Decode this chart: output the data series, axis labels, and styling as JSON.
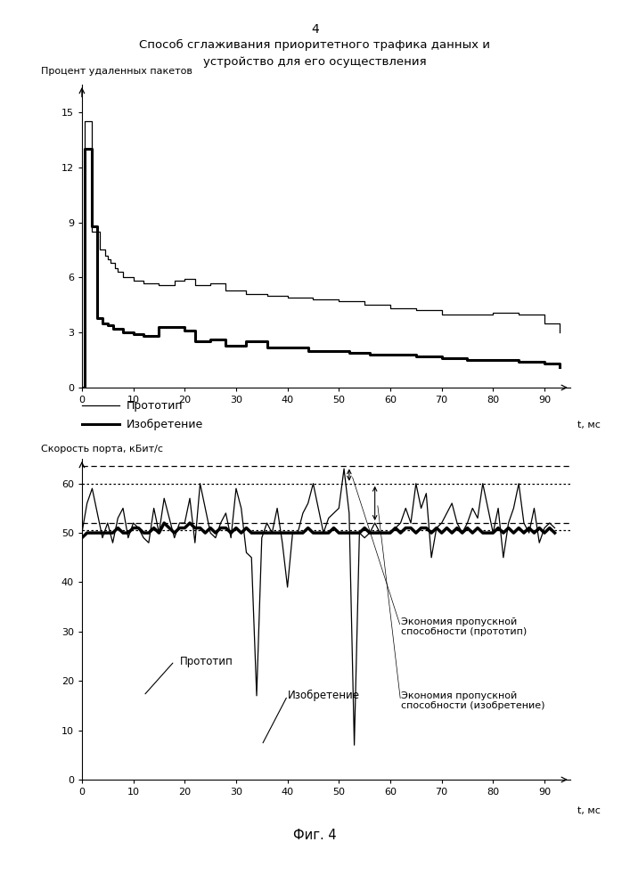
{
  "page_number": "4",
  "title_line1": "Способ сглаживания приоритетного трафика данных и",
  "title_line2": "устройство для его осуществления",
  "fig_label": "Фиг. 4",
  "chart1": {
    "ylabel": "Процент удаленных пакетов",
    "xlabel": "t, мс",
    "xlim_max": 95,
    "ylim_max": 16.5,
    "yticks": [
      0,
      3,
      6,
      9,
      12,
      15
    ],
    "xticks": [
      0,
      10,
      20,
      30,
      40,
      50,
      60,
      70,
      80,
      90
    ],
    "legend": [
      "Прототип",
      "Изобретение"
    ],
    "proto_t": [
      0,
      0.5,
      1,
      2,
      3,
      3.5,
      4,
      4.5,
      5,
      5.5,
      6,
      6.5,
      7,
      8,
      10,
      12,
      15,
      18,
      20,
      22,
      25,
      28,
      32,
      36,
      40,
      45,
      50,
      55,
      60,
      65,
      70,
      75,
      80,
      85,
      90,
      93
    ],
    "proto_v": [
      0,
      14.5,
      14.5,
      8.5,
      8.5,
      7.5,
      7.5,
      7.2,
      7.0,
      6.8,
      6.8,
      6.5,
      6.3,
      6.0,
      5.8,
      5.7,
      5.6,
      5.8,
      5.9,
      5.6,
      5.7,
      5.3,
      5.1,
      5.0,
      4.9,
      4.8,
      4.7,
      4.5,
      4.3,
      4.2,
      4.0,
      4.0,
      4.1,
      4.0,
      3.5,
      3.0
    ],
    "invent_t": [
      0,
      0.5,
      1,
      2,
      2.5,
      3,
      3.5,
      4,
      5,
      6,
      7,
      8,
      10,
      12,
      15,
      18,
      20,
      22,
      25,
      28,
      32,
      36,
      40,
      44,
      48,
      52,
      56,
      60,
      65,
      70,
      75,
      80,
      85,
      90,
      93
    ],
    "invent_v": [
      0,
      13.0,
      13.0,
      8.8,
      8.8,
      3.8,
      3.8,
      3.5,
      3.4,
      3.2,
      3.2,
      3.0,
      2.9,
      2.8,
      3.3,
      3.3,
      3.1,
      2.5,
      2.6,
      2.3,
      2.5,
      2.2,
      2.2,
      2.0,
      2.0,
      1.9,
      1.8,
      1.8,
      1.7,
      1.6,
      1.5,
      1.5,
      1.4,
      1.3,
      1.1
    ]
  },
  "chart2": {
    "ylabel": "Скорость порта, кБит/с",
    "xlabel": "t, мс",
    "xlim_max": 95,
    "ylim_max": 65,
    "yticks": [
      0,
      10,
      20,
      30,
      40,
      50,
      60
    ],
    "xticks": [
      0,
      10,
      20,
      30,
      40,
      50,
      60,
      70,
      80,
      90
    ],
    "hline1_y": 63.5,
    "hline2_y": 60,
    "hline3_y": 52,
    "hline4_y": 50.5,
    "proto_label": "Прототип",
    "invent_label": "Изобретение",
    "saving_proto_text": "Экономия пропускной\nспособности (прототип)",
    "saving_invent_text": "Экономия пропускной\nспособности (изобретение)"
  }
}
